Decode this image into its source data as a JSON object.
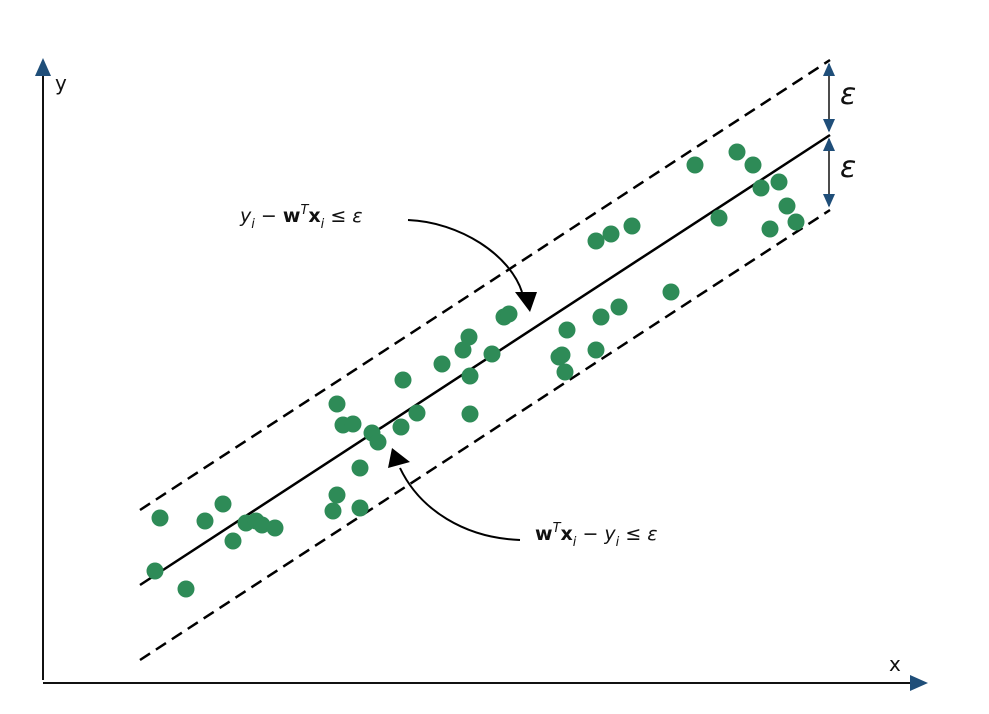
{
  "axes": {
    "x_label": "x",
    "y_label": "y"
  },
  "epsilon": {
    "upper_label": "ε",
    "lower_label": "ε"
  },
  "annotations": {
    "upper": {
      "y_i": "y",
      "i1": "i",
      "minus": " − ",
      "w": "w",
      "T": "T",
      "x": "x",
      "i2": "i",
      "le": " ≤ ",
      "eps": "ε"
    },
    "lower": {
      "w": "w",
      "T": "T",
      "x": "x",
      "i1": "i",
      "minus": " − ",
      "y_i": "y",
      "i2": "i",
      "le": " ≤ ",
      "eps": "ε"
    }
  },
  "colors": {
    "points": "#2e8b57",
    "lines": "#000000",
    "axis": "#111111",
    "arrowhead": "#1f4e79"
  },
  "points": [
    [
      155,
      571
    ],
    [
      186,
      589
    ],
    [
      160,
      518
    ],
    [
      205,
      521
    ],
    [
      223,
      504
    ],
    [
      233,
      541
    ],
    [
      246,
      523
    ],
    [
      256,
      521
    ],
    [
      262,
      525
    ],
    [
      275,
      528
    ],
    [
      333,
      511
    ],
    [
      337,
      495
    ],
    [
      360,
      508
    ],
    [
      360,
      468
    ],
    [
      337,
      404
    ],
    [
      343,
      425
    ],
    [
      353,
      424
    ],
    [
      372,
      433
    ],
    [
      378,
      442
    ],
    [
      401,
      427
    ],
    [
      417,
      413
    ],
    [
      403,
      380
    ],
    [
      442,
      364
    ],
    [
      470,
      414
    ],
    [
      470,
      376
    ],
    [
      463,
      350
    ],
    [
      469,
      337
    ],
    [
      492,
      354
    ],
    [
      504,
      317
    ],
    [
      509,
      314
    ],
    [
      565,
      372
    ],
    [
      559,
      357
    ],
    [
      562,
      355
    ],
    [
      567,
      330
    ],
    [
      596,
      350
    ],
    [
      601,
      317
    ],
    [
      619,
      307
    ],
    [
      596,
      241
    ],
    [
      611,
      234
    ],
    [
      632,
      226
    ],
    [
      671,
      292
    ],
    [
      695,
      165
    ],
    [
      719,
      218
    ],
    [
      737,
      152
    ],
    [
      753,
      165
    ],
    [
      761,
      188
    ],
    [
      779,
      182
    ],
    [
      787,
      206
    ],
    [
      770,
      229
    ],
    [
      796,
      222
    ]
  ]
}
